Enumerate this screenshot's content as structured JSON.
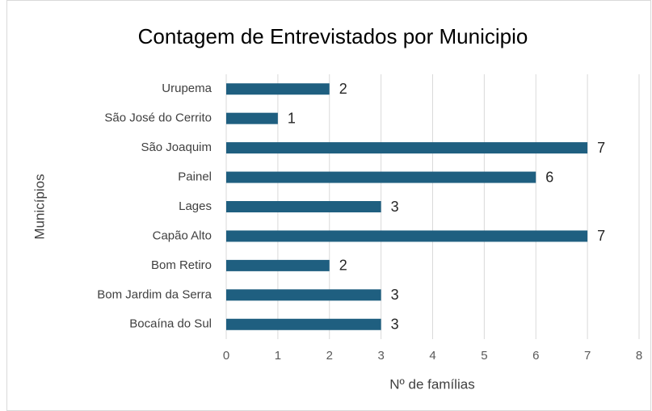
{
  "chart_data": {
    "type": "bar",
    "orientation": "horizontal",
    "title": "Contagem de Entrevistados por Municipio",
    "x_label": "Nº de famílias",
    "y_label": "Municípios",
    "categories": [
      "Urupema",
      "São José do Cerrito",
      "São Joaquim",
      "Painel",
      "Lages",
      "Capão Alto",
      "Bom Retiro",
      "Bom Jardim da Serra",
      "Bocaína do Sul"
    ],
    "values": [
      2,
      1,
      7,
      6,
      3,
      7,
      2,
      3,
      3
    ],
    "color": "#1f5f80",
    "xlim": [
      0,
      8
    ],
    "xticks": [
      0,
      1,
      2,
      3,
      4,
      5,
      6,
      7,
      8
    ],
    "grid": true
  }
}
